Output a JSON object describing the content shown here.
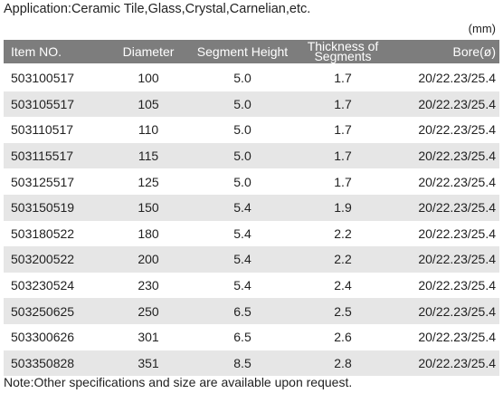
{
  "application": "Application:Ceramic Tile,Glass,Crystal,Carnelian,etc.",
  "unit": "(mm)",
  "table": {
    "header": [
      "Item NO.",
      "Diameter",
      "Segment Height",
      "Thickness of Segments",
      "Bore(ø)"
    ],
    "rows": [
      [
        "503100517",
        "100",
        "5.0",
        "1.7",
        "20/22.23/25.4"
      ],
      [
        "503105517",
        "105",
        "5.0",
        "1.7",
        "20/22.23/25.4"
      ],
      [
        "503110517",
        "110",
        "5.0",
        "1.7",
        "20/22.23/25.4"
      ],
      [
        "503115517",
        "115",
        "5.0",
        "1.7",
        "20/22.23/25.4"
      ],
      [
        "503125517",
        "125",
        "5.0",
        "1.7",
        "20/22.23/25.4"
      ],
      [
        "503150519",
        "150",
        "5.4",
        "1.9",
        "20/22.23/25.4"
      ],
      [
        "503180522",
        "180",
        "5.4",
        "2.2",
        "20/22.23/25.4"
      ],
      [
        "503200522",
        "200",
        "5.4",
        "2.2",
        "20/22.23/25.4"
      ],
      [
        "503230524",
        "230",
        "5.4",
        "2.4",
        "20/22.23/25.4"
      ],
      [
        "503250625",
        "250",
        "6.5",
        "2.5",
        "20/22.23/25.4"
      ],
      [
        "503300626",
        "301",
        "6.5",
        "2.6",
        "20/22.23/25.4"
      ],
      [
        "503350828",
        "351",
        "8.5",
        "2.8",
        "20/22.23/25.4"
      ]
    ]
  },
  "note": "Note:Other specifications and size are available upon request."
}
